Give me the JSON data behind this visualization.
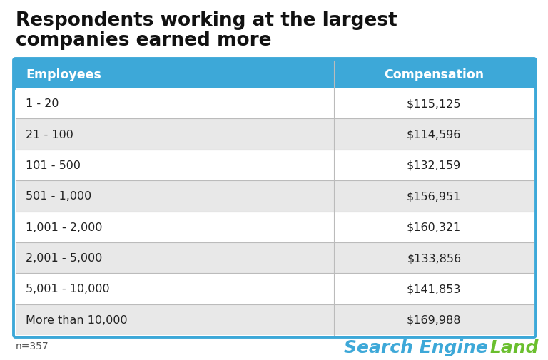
{
  "title_line1": "Respondents working at the largest",
  "title_line2": "companies earned more",
  "header": [
    "Employees",
    "Compensation"
  ],
  "rows": [
    [
      "1 - 20",
      "$115,125"
    ],
    [
      "21 - 100",
      "$114,596"
    ],
    [
      "101 - 500",
      "$132,159"
    ],
    [
      "501 - 1,000",
      "$156,951"
    ],
    [
      "1,001 - 2,000",
      "$160,321"
    ],
    [
      "2,001 - 5,000",
      "$133,856"
    ],
    [
      "5,001 - 10,000",
      "$141,853"
    ],
    [
      "More than 10,000",
      "$169,988"
    ]
  ],
  "header_bg": "#3da8d8",
  "header_text_color": "#ffffff",
  "row_colors": [
    "#ffffff",
    "#e8e8e8"
  ],
  "row_text_color": "#222222",
  "table_border_color": "#3da8d8",
  "title_color": "#111111",
  "title_fontsize": 19,
  "header_fontsize": 12.5,
  "cell_fontsize": 11.5,
  "note_text": "n=357",
  "note_fontsize": 10,
  "note_color": "#555555",
  "bg_color": "#ffffff",
  "col_split": 0.615,
  "brand_search": "Search Engine ",
  "brand_land": "Land",
  "brand_search_color": "#3da8d8",
  "brand_land_color": "#6abf2e"
}
